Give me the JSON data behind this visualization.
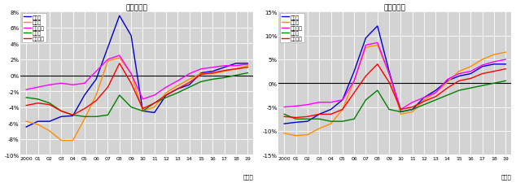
{
  "years": [
    2000,
    1,
    2,
    3,
    4,
    5,
    6,
    7,
    8,
    9,
    10,
    11,
    12,
    13,
    14,
    15,
    16,
    17,
    18,
    19
  ],
  "year_labels": [
    "2000",
    "01",
    "02",
    "03",
    "04",
    "05",
    "06",
    "07",
    "08",
    "09",
    "10",
    "11",
    "12",
    "13",
    "14",
    "15",
    "16",
    "17",
    "18",
    "19"
  ],
  "title_left": "（住宅地）",
  "title_right": "（商業地）",
  "xlabel": "（年）",
  "series_names": [
    "東京圈",
    "大阪圈",
    "名古屋圈",
    "地方圈",
    "全国平均"
  ],
  "colors": [
    "#0000CC",
    "#FF8C00",
    "#FF00FF",
    "#008000",
    "#FF0000"
  ],
  "left": {
    "tokyo": [
      -6.5,
      -5.8,
      -5.8,
      -5.2,
      -5.1,
      -2.5,
      -0.5,
      3.5,
      7.5,
      5.0,
      -4.5,
      -4.7,
      -2.5,
      -1.7,
      -1.2,
      0.3,
      0.5,
      1.0,
      1.5,
      1.5
    ],
    "osaka": [
      -5.8,
      -6.2,
      -7.0,
      -8.2,
      -8.2,
      -5.5,
      -2.5,
      1.8,
      2.2,
      0.2,
      -4.5,
      -4.0,
      -2.2,
      -1.3,
      -0.5,
      0.2,
      0.2,
      0.5,
      0.8,
      1.2
    ],
    "nagoya": [
      -1.8,
      -1.5,
      -1.2,
      -1.0,
      -1.2,
      -1.0,
      0.5,
      2.0,
      2.5,
      0.2,
      -3.0,
      -2.5,
      -1.5,
      -0.7,
      0.2,
      0.8,
      1.0,
      1.2,
      1.2,
      1.4
    ],
    "chiho": [
      -2.8,
      -3.0,
      -3.5,
      -4.5,
      -5.0,
      -5.2,
      -5.2,
      -5.0,
      -2.5,
      -4.0,
      -4.5,
      -3.5,
      -2.8,
      -2.2,
      -1.5,
      -0.8,
      -0.5,
      -0.3,
      0.0,
      0.3
    ],
    "zenkoku": [
      -3.8,
      -3.5,
      -3.7,
      -4.5,
      -5.0,
      -4.2,
      -3.2,
      -1.5,
      1.5,
      -1.0,
      -4.2,
      -3.5,
      -2.5,
      -1.7,
      -0.9,
      0.1,
      0.3,
      0.6,
      0.8,
      1.0
    ]
  },
  "right": {
    "tokyo": [
      -8.5,
      -8.2,
      -8.0,
      -6.5,
      -5.5,
      -3.5,
      2.5,
      9.5,
      12.0,
      2.5,
      -6.0,
      -5.5,
      -3.0,
      -1.5,
      0.5,
      1.5,
      2.0,
      3.5,
      4.0,
      4.0
    ],
    "osaka": [
      -10.5,
      -11.0,
      -10.8,
      -9.5,
      -8.5,
      -5.5,
      0.5,
      7.5,
      8.0,
      2.0,
      -6.5,
      -6.0,
      -3.5,
      -2.0,
      0.2,
      2.5,
      3.5,
      5.0,
      6.0,
      6.5
    ],
    "nagoya": [
      -5.0,
      -4.8,
      -4.5,
      -4.0,
      -4.0,
      -3.5,
      0.5,
      8.0,
      8.5,
      2.0,
      -5.5,
      -4.0,
      -3.0,
      -2.0,
      0.8,
      2.0,
      2.5,
      3.8,
      4.5,
      5.0
    ],
    "chiho": [
      -6.5,
      -7.5,
      -7.5,
      -7.5,
      -8.0,
      -8.0,
      -7.5,
      -3.5,
      -1.5,
      -5.5,
      -6.0,
      -5.5,
      -4.5,
      -3.5,
      -2.5,
      -1.5,
      -1.0,
      -0.5,
      0.0,
      0.5
    ],
    "zenkoku": [
      -7.0,
      -7.2,
      -7.0,
      -6.5,
      -6.5,
      -5.5,
      -2.0,
      1.5,
      4.0,
      0.2,
      -5.5,
      -5.0,
      -3.8,
      -2.8,
      -1.0,
      0.5,
      1.0,
      2.0,
      2.5,
      3.0
    ]
  },
  "ylim_left": [
    -10,
    8
  ],
  "ylim_right": [
    -15,
    15
  ],
  "yticks_left": [
    -10,
    -8,
    -6,
    -4,
    -2,
    0,
    2,
    4,
    6,
    8
  ],
  "yticks_right": [
    -15,
    -10,
    -5,
    0,
    5,
    10,
    15
  ],
  "bg_color": "#D3D3D3",
  "grid_color": "#FFFFFF"
}
